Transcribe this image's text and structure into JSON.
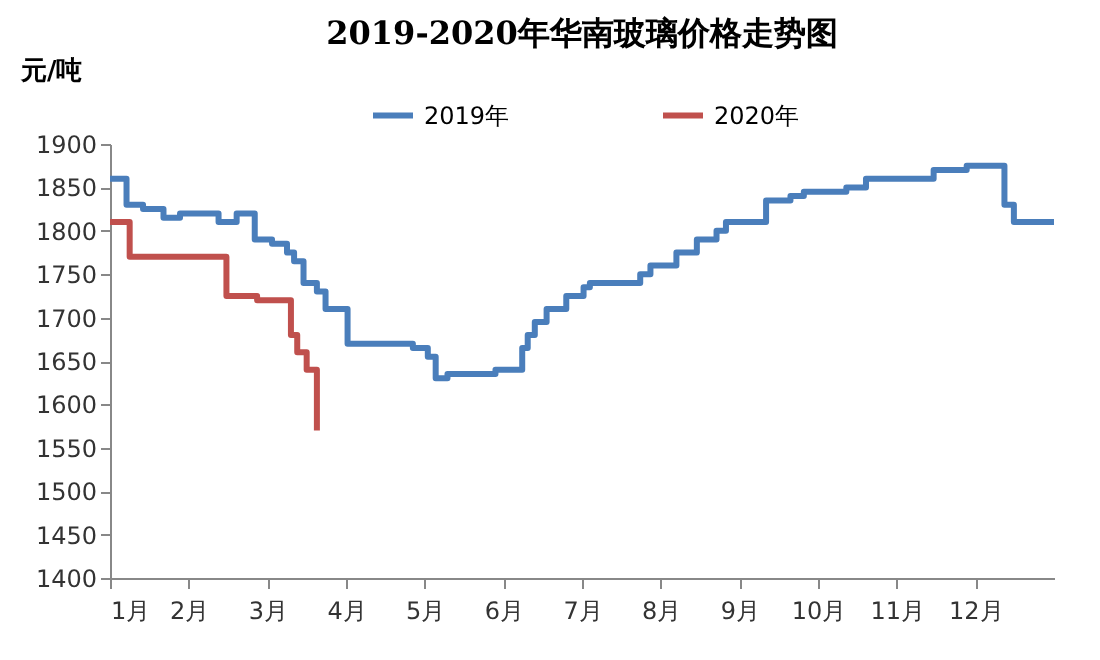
{
  "chart_data": {
    "type": "step",
    "title": "2019-2020年华南玻璃价格走势图",
    "ylabel": "元/吨",
    "xlim": [
      1,
      13
    ],
    "xticks": [
      {
        "value": 1,
        "label": "1月"
      },
      {
        "value": 2,
        "label": "2月"
      },
      {
        "value": 3,
        "label": "3月"
      },
      {
        "value": 4,
        "label": "4月"
      },
      {
        "value": 5,
        "label": "5月"
      },
      {
        "value": 6,
        "label": "6月"
      },
      {
        "value": 7,
        "label": "7月"
      },
      {
        "value": 8,
        "label": "8月"
      },
      {
        "value": 9,
        "label": "9月"
      },
      {
        "value": 10,
        "label": "10月"
      },
      {
        "value": 11,
        "label": "11月"
      },
      {
        "value": 12,
        "label": "12月"
      }
    ],
    "ylim": [
      1400,
      1900
    ],
    "yticks": [
      1400,
      1450,
      1500,
      1550,
      1600,
      1650,
      1700,
      1750,
      1800,
      1850,
      1900
    ],
    "grid": false,
    "legend": "top",
    "marker": "none",
    "line_style": "solid",
    "series": [
      {
        "name": "2019年",
        "color": "#4a7ebb",
        "x": [
          1.0,
          1.21,
          1.42,
          1.68,
          1.89,
          2.38,
          2.61,
          2.84,
          3.06,
          3.25,
          3.34,
          3.46,
          3.63,
          3.74,
          4.02,
          4.85,
          5.04,
          5.14,
          5.29,
          5.9,
          6.24,
          6.31,
          6.4,
          6.55,
          6.8,
          7.02,
          7.1,
          7.74,
          7.87,
          8.2,
          8.46,
          8.71,
          8.83,
          9.34,
          9.65,
          9.82,
          10.36,
          10.61,
          11.47,
          11.89,
          12.37,
          12.49,
          13.0
        ],
        "values": [
          1860,
          1830,
          1825,
          1815,
          1820,
          1810,
          1820,
          1790,
          1785,
          1775,
          1765,
          1740,
          1730,
          1710,
          1670,
          1665,
          1655,
          1630,
          1635,
          1640,
          1665,
          1680,
          1695,
          1710,
          1725,
          1735,
          1740,
          1750,
          1760,
          1775,
          1790,
          1800,
          1810,
          1835,
          1840,
          1845,
          1850,
          1860,
          1870,
          1875,
          1830,
          1810,
          1810
        ]
      },
      {
        "name": "2020年",
        "color": "#c0504d",
        "x": [
          1.0,
          1.25,
          2.48,
          2.87,
          3.3,
          3.38,
          3.5,
          3.63
        ],
        "values": [
          1810,
          1770,
          1725,
          1720,
          1680,
          1660,
          1640,
          1570
        ]
      }
    ]
  }
}
